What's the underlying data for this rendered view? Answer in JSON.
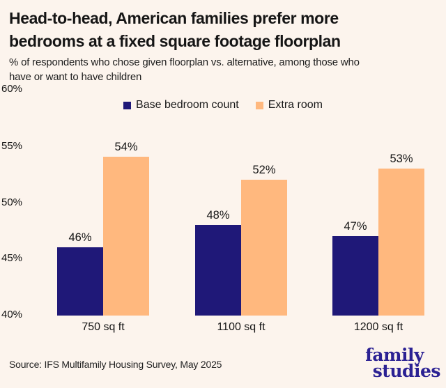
{
  "header": {
    "title_lines": [
      "Head-to-head, American families prefer more",
      "bedrooms at a fixed square footage floorplan"
    ],
    "subtitle_lines": [
      "% of respondents who chose given floorplan vs. alternative, among those who",
      "have or want to have children"
    ]
  },
  "chart_data": {
    "type": "bar",
    "title": "Head-to-head, American families prefer more bedrooms at a fixed square footage floorplan",
    "subtitle": "% of respondents who chose given floorplan vs. alternative, among those who have or want to have children",
    "categories": [
      "750 sq ft",
      "1100 sq ft",
      "1200 sq ft"
    ],
    "series": [
      {
        "name": "Base bedroom count",
        "color": "#1f1878",
        "values": [
          46,
          48,
          47
        ]
      },
      {
        "name": "Extra room",
        "color": "#ffb87e",
        "values": [
          54,
          52,
          53
        ]
      }
    ],
    "ylim": [
      40,
      60
    ],
    "y_ticks": [
      "60%",
      "55%",
      "50%",
      "45%",
      "40%"
    ],
    "value_label_suffix": "%",
    "grid": false,
    "legend_position": "top-center"
  },
  "footer": {
    "source": "Source: IFS Multifamily Housing Survey, May 2025",
    "logo_lines": [
      "family",
      "studies"
    ]
  },
  "colors": {
    "background": "#fcf4ed",
    "title_text": "#151515",
    "bar_navy": "#1f1878",
    "bar_peach": "#ffb87e",
    "logo_navy": "#2b2193"
  }
}
